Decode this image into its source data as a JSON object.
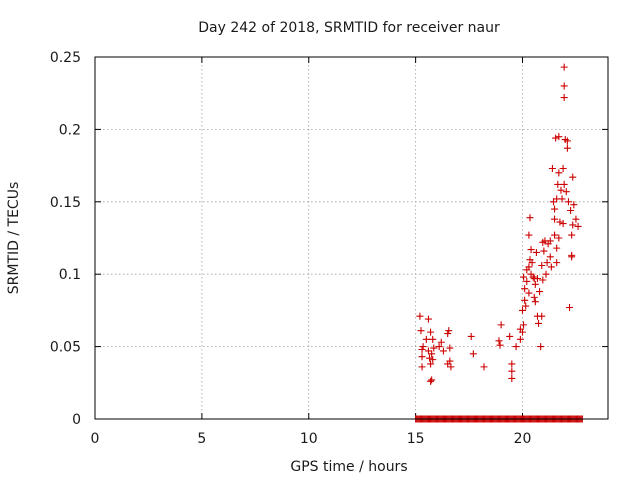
{
  "chart_data": {
    "type": "scatter",
    "title": "Day 242 of 2018, SRMTID for receiver naur",
    "xlabel": "GPS time / hours",
    "ylabel": "SRMTID / TECUs",
    "xlim": [
      0,
      24
    ],
    "ylim": [
      0,
      0.25
    ],
    "xticks": [
      0,
      5,
      10,
      15,
      20
    ],
    "xtick_labels": [
      "0",
      "5",
      "10",
      "15",
      "20"
    ],
    "yticks": [
      0,
      0.05,
      0.1,
      0.15,
      0.2,
      0.25
    ],
    "ytick_labels": [
      "0",
      "0.05",
      "0.1",
      "0.15",
      "0.2",
      "0.25"
    ],
    "grid": true,
    "marker": "plus",
    "color": "#cc0000",
    "series": [
      {
        "name": "SRMTID",
        "points": [
          [
            15.2,
            0.071
          ],
          [
            15.25,
            0.061
          ],
          [
            15.3,
            0.048
          ],
          [
            15.3,
            0.043
          ],
          [
            15.35,
            0.05
          ],
          [
            15.3,
            0.036
          ],
          [
            15.5,
            0.055
          ],
          [
            15.6,
            0.069
          ],
          [
            15.6,
            0.047
          ],
          [
            15.65,
            0.042
          ],
          [
            15.7,
            0.06
          ],
          [
            15.7,
            0.038
          ],
          [
            15.75,
            0.045
          ],
          [
            15.8,
            0.055
          ],
          [
            15.75,
            0.027
          ],
          [
            15.7,
            0.026
          ],
          [
            15.8,
            0.041
          ],
          [
            15.85,
            0.049
          ],
          [
            16.1,
            0.05
          ],
          [
            16.2,
            0.053
          ],
          [
            16.3,
            0.047
          ],
          [
            16.5,
            0.059
          ],
          [
            16.55,
            0.061
          ],
          [
            16.5,
            0.038
          ],
          [
            16.6,
            0.04
          ],
          [
            16.6,
            0.049
          ],
          [
            16.65,
            0.036
          ],
          [
            17.6,
            0.057
          ],
          [
            17.7,
            0.045
          ],
          [
            18.2,
            0.036
          ],
          [
            18.9,
            0.054
          ],
          [
            18.95,
            0.051
          ],
          [
            19.0,
            0.065
          ],
          [
            19.4,
            0.057
          ],
          [
            19.5,
            0.038
          ],
          [
            19.5,
            0.033
          ],
          [
            19.5,
            0.028
          ],
          [
            19.7,
            0.05
          ],
          [
            19.9,
            0.062
          ],
          [
            19.9,
            0.055
          ],
          [
            20.0,
            0.06
          ],
          [
            20.05,
            0.065
          ],
          [
            20.0,
            0.075
          ],
          [
            20.1,
            0.082
          ],
          [
            20.1,
            0.09
          ],
          [
            20.15,
            0.078
          ],
          [
            20.2,
            0.095
          ],
          [
            20.2,
            0.103
          ],
          [
            20.3,
            0.087
          ],
          [
            20.3,
            0.105
          ],
          [
            20.35,
            0.11
          ],
          [
            20.3,
            0.127
          ],
          [
            20.35,
            0.139
          ],
          [
            20.4,
            0.117
          ],
          [
            20.45,
            0.108
          ],
          [
            20.5,
            0.098
          ],
          [
            20.55,
            0.084
          ],
          [
            20.6,
            0.081
          ],
          [
            20.6,
            0.093
          ],
          [
            20.7,
            0.097
          ],
          [
            20.7,
            0.071
          ],
          [
            20.75,
            0.066
          ],
          [
            20.8,
            0.088
          ],
          [
            20.85,
            0.05
          ],
          [
            20.9,
            0.071
          ],
          [
            20.9,
            0.106
          ],
          [
            20.95,
            0.122
          ],
          [
            21.1,
            0.1
          ],
          [
            21.15,
            0.108
          ],
          [
            21.2,
            0.121
          ],
          [
            21.3,
            0.123
          ],
          [
            21.3,
            0.112
          ],
          [
            21.35,
            0.105
          ],
          [
            21.4,
            0.173
          ],
          [
            21.45,
            0.15
          ],
          [
            21.5,
            0.138
          ],
          [
            21.5,
            0.127
          ],
          [
            21.55,
            0.194
          ],
          [
            21.6,
            0.118
          ],
          [
            21.6,
            0.152
          ],
          [
            21.65,
            0.162
          ],
          [
            21.7,
            0.195
          ],
          [
            21.7,
            0.17
          ],
          [
            21.75,
            0.136
          ],
          [
            21.8,
            0.158
          ],
          [
            21.85,
            0.152
          ],
          [
            21.9,
            0.173
          ],
          [
            21.9,
            0.135
          ],
          [
            21.95,
            0.243
          ],
          [
            21.95,
            0.23
          ],
          [
            21.95,
            0.222
          ],
          [
            22.0,
            0.193
          ],
          [
            22.1,
            0.192
          ],
          [
            22.1,
            0.187
          ],
          [
            22.15,
            0.15
          ],
          [
            22.2,
            0.077
          ],
          [
            22.25,
            0.144
          ],
          [
            22.3,
            0.127
          ],
          [
            22.3,
            0.113
          ],
          [
            22.35,
            0.167
          ],
          [
            22.4,
            0.148
          ],
          [
            22.5,
            0.138
          ],
          [
            22.6,
            0.133
          ],
          [
            22.35,
            0.134
          ],
          [
            22.3,
            0.112
          ],
          [
            21.6,
            0.108
          ],
          [
            21.5,
            0.145
          ],
          [
            20.65,
            0.115
          ],
          [
            20.95,
            0.096
          ],
          [
            21.05,
            0.123
          ],
          [
            20.05,
            0.098
          ],
          [
            21.7,
            0.125
          ],
          [
            21.95,
            0.162
          ],
          [
            22.05,
            0.157
          ],
          [
            20.4,
            0.1
          ],
          [
            20.55,
            0.097
          ],
          [
            21.0,
            0.116
          ]
        ],
        "zero_band_hours": [
          15.0,
          22.8
        ]
      }
    ]
  }
}
